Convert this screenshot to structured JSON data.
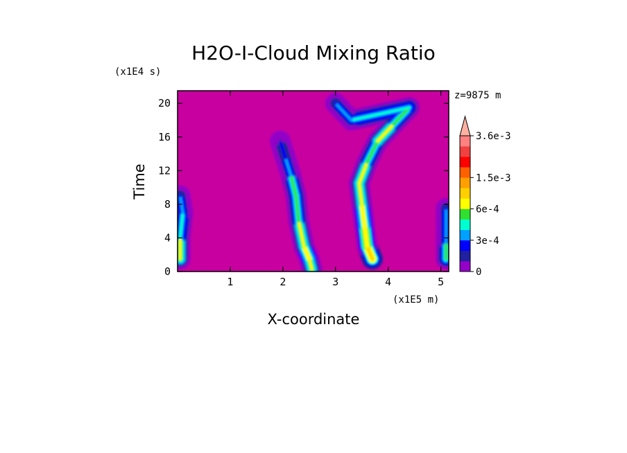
{
  "chart_data": {
    "type": "heatmap",
    "title": "H2O-I-Cloud Mixing Ratio",
    "xlabel": "X-coordinate",
    "ylabel": "Time",
    "x_unit": "(x1E5 m)",
    "y_unit": "(x1E4 s)",
    "level_annotation": "z=9875 m",
    "xlim": [
      0,
      5.15
    ],
    "ylim": [
      0,
      21.5
    ],
    "x_ticks": [
      "1",
      "2",
      "3",
      "4",
      "5"
    ],
    "y_ticks": [
      "0",
      "4",
      "8",
      "12",
      "16",
      "20"
    ],
    "x_tick_values": [
      1,
      2,
      3,
      4,
      5
    ],
    "y_tick_values": [
      0,
      4,
      8,
      12,
      16,
      20
    ],
    "colorbar": {
      "levels": [
        0,
        0.0001,
        0.0002,
        0.0003,
        0.0004,
        0.0005,
        0.0006,
        0.0009,
        0.0012,
        0.0015,
        0.0018,
        0.0024,
        0.003,
        0.0036
      ],
      "colors": [
        "#9400c8",
        "#2020a0",
        "#0000ff",
        "#00a0ff",
        "#00ffd0",
        "#30e030",
        "#ffff00",
        "#ffd000",
        "#ffa000",
        "#ff6000",
        "#ff0000",
        "#f04040",
        "#ff8080",
        "#ffb0a0"
      ],
      "labels": [
        "0",
        "3e-4",
        "6e-4",
        "1.5e-3",
        "3.6e-3"
      ],
      "label_values": [
        0,
        0.0003,
        0.0006,
        0.0015,
        0.0036
      ],
      "extend": "max"
    },
    "background_color": "#c800a0",
    "plumes": [
      {
        "name": "",
        "points": [
          [
            2.55,
            0.3
          ],
          [
            2.5,
            1.5
          ],
          [
            2.4,
            3.0
          ],
          [
            2.3,
            6.0
          ],
          [
            2.25,
            9.0
          ],
          [
            2.15,
            11.5
          ],
          [
            2.05,
            13.5
          ],
          [
            1.95,
            15.5
          ]
        ],
        "intensity": [
          0.0006,
          0.0007,
          0.0006,
          0.0005,
          0.0005,
          0.0003,
          0.0002,
          0.0001
        ]
      },
      {
        "name": "",
        "points": [
          [
            3.7,
            1.5
          ],
          [
            3.6,
            3.0
          ],
          [
            3.55,
            5.5
          ],
          [
            3.5,
            8.0
          ],
          [
            3.45,
            10.5
          ],
          [
            3.6,
            13.0
          ],
          [
            3.8,
            15.5
          ],
          [
            4.1,
            17.5
          ],
          [
            4.4,
            19.5
          ],
          [
            3.3,
            18.0
          ],
          [
            3.0,
            20.0
          ]
        ],
        "intensity": [
          0.0009,
          0.0008,
          0.0007,
          0.0006,
          0.0006,
          0.0005,
          0.0006,
          0.0005,
          0.0004,
          0.0003,
          0.0002
        ]
      },
      {
        "name": "",
        "points": [
          [
            0.05,
            1.5
          ],
          [
            0.05,
            4.0
          ],
          [
            0.1,
            7.0
          ],
          [
            0.05,
            9.0
          ]
        ],
        "intensity": [
          0.0006,
          0.0004,
          0.0003,
          0.0002
        ]
      },
      {
        "name": "",
        "points": [
          [
            5.1,
            1.5
          ],
          [
            5.1,
            3.5
          ],
          [
            5.1,
            7.5
          ]
        ],
        "intensity": [
          0.0005,
          0.0003,
          0.0002
        ]
      }
    ]
  }
}
